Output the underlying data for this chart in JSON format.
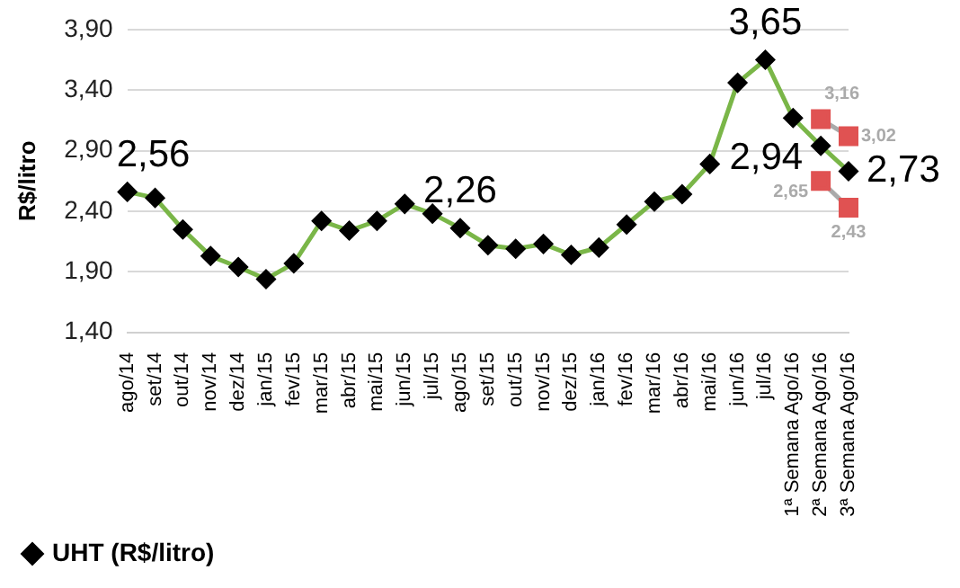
{
  "chart_data": {
    "type": "line",
    "ylabel": "R$/litro",
    "categories": [
      "ago/14",
      "set/14",
      "out/14",
      "nov/14",
      "dez/14",
      "jan/15",
      "fev/15",
      "mar/15",
      "abr/15",
      "mai/15",
      "jun/15",
      "jul/15",
      "ago/15",
      "set/15",
      "out/15",
      "nov/15",
      "dez/15",
      "jan/16",
      "fev/16",
      "mar/16",
      "abr/16",
      "mai/16",
      "jun/16",
      "jul/16",
      "1ª Semana Ago/16",
      "2ª Semana Ago/16",
      "3ª Semana Ago/16"
    ],
    "series": [
      {
        "name": "UHT (R$/litro)",
        "color": "#7ab648",
        "marker": "diamond",
        "values": [
          2.56,
          2.51,
          2.25,
          2.03,
          1.94,
          1.84,
          1.97,
          2.32,
          2.24,
          2.32,
          2.46,
          2.38,
          2.26,
          2.12,
          2.09,
          2.13,
          2.04,
          2.1,
          2.29,
          2.48,
          2.54,
          2.79,
          3.46,
          3.65,
          3.17,
          2.94,
          2.73
        ],
        "value_labels": [
          "2,56",
          null,
          null,
          null,
          null,
          null,
          null,
          null,
          null,
          null,
          null,
          null,
          "2,26",
          null,
          null,
          null,
          null,
          null,
          null,
          null,
          null,
          null,
          null,
          "3,65",
          null,
          "2,94",
          "2,73"
        ]
      },
      {
        "color": "#e05252",
        "marker": "square",
        "values": [
          null,
          null,
          null,
          null,
          null,
          null,
          null,
          null,
          null,
          null,
          null,
          null,
          null,
          null,
          null,
          null,
          null,
          null,
          null,
          null,
          null,
          null,
          null,
          null,
          null,
          3.16,
          3.02
        ],
        "value_labels": [
          null,
          null,
          null,
          null,
          null,
          null,
          null,
          null,
          null,
          null,
          null,
          null,
          null,
          null,
          null,
          null,
          null,
          null,
          null,
          null,
          null,
          null,
          null,
          null,
          null,
          "3,16",
          "3,02"
        ]
      },
      {
        "color": "#e05252",
        "marker": "square",
        "values": [
          null,
          null,
          null,
          null,
          null,
          null,
          null,
          null,
          null,
          null,
          null,
          null,
          null,
          null,
          null,
          null,
          null,
          null,
          null,
          null,
          null,
          null,
          null,
          null,
          null,
          2.65,
          2.43
        ],
        "value_labels": [
          null,
          null,
          null,
          null,
          null,
          null,
          null,
          null,
          null,
          null,
          null,
          null,
          null,
          null,
          null,
          null,
          null,
          null,
          null,
          null,
          null,
          null,
          null,
          null,
          null,
          "2,65",
          "2,43"
        ]
      }
    ],
    "ylim": [
      1.4,
      3.9
    ],
    "yticks": [
      {
        "value": 1.4,
        "label": "1,40"
      },
      {
        "value": 1.9,
        "label": "1,90"
      },
      {
        "value": 2.4,
        "label": "2,40"
      },
      {
        "value": 2.9,
        "label": "2,90"
      },
      {
        "value": 3.4,
        "label": "3,40"
      },
      {
        "value": 3.9,
        "label": "3,90"
      }
    ],
    "grid": "y",
    "legend": "bottom left"
  }
}
